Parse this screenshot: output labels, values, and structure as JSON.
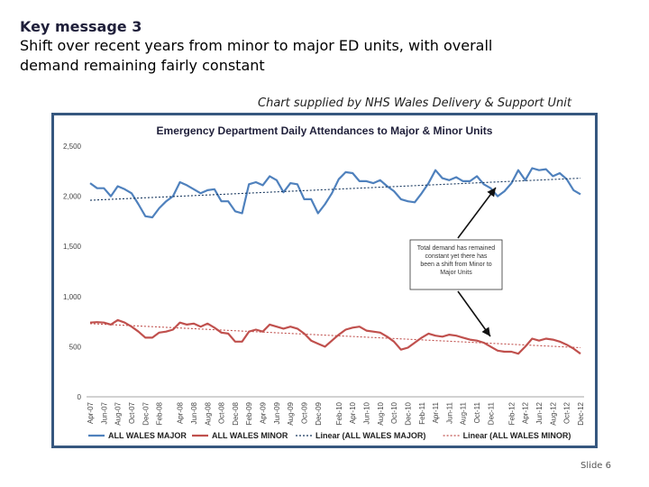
{
  "slide": {
    "kicker": "Key message 3",
    "line1": "Shift over recent years from minor to major ED units, with overall",
    "line2": "demand remaining fairly constant",
    "supplied_by": "Chart supplied by NHS Wales Delivery & Support Unit",
    "slide_number": "Slide 6"
  },
  "chart_data": {
    "type": "line",
    "title": "Emergency Department Daily Attendances to Major & Minor Units",
    "xlabel": "",
    "ylabel": "",
    "ylim": [
      0,
      2500
    ],
    "yticks": [
      "0",
      "500",
      "1,000",
      "1,500",
      "2,000",
      "2,500"
    ],
    "ytick_values": [
      0,
      500,
      1000,
      1500,
      2000,
      2500
    ],
    "grid": false,
    "legend_position": "bottom",
    "x_tick_labels": [
      "Apr-07",
      "Jun-07",
      "Aug-07",
      "Oct-07",
      "Dec-07",
      "Feb-08",
      "Apr-08",
      "Jun-08",
      "Aug-08",
      "Oct-08",
      "Dec-08",
      "Feb-09",
      "Apr-09",
      "Jun-09",
      "Aug-09",
      "Oct-09",
      "Dec-09",
      "Feb-10",
      "Apr-10",
      "Jun-10",
      "Aug-10",
      "Oct-10",
      "Dec-10",
      "Feb-11",
      "Apr-11",
      "Jun-11",
      "Aug-11",
      "Oct-11",
      "Dec-11",
      "Feb-12",
      "Apr-12",
      "Jun-12",
      "Aug-12",
      "Oct-12",
      "Dec-12"
    ],
    "series": [
      {
        "name": "ALL WALES MAJOR",
        "color": "#4f81bd",
        "style": "solid",
        "values": [
          2130,
          2080,
          2080,
          2000,
          2100,
          2070,
          2030,
          1920,
          1800,
          1790,
          1880,
          1950,
          2000,
          2140,
          2110,
          2070,
          2030,
          2060,
          2070,
          1950,
          1950,
          1850,
          1830,
          2120,
          2140,
          2110,
          2200,
          2160,
          2040,
          2130,
          2120,
          1970,
          1970,
          1830,
          1920,
          2030,
          2170,
          2240,
          2230,
          2150,
          2150,
          2130,
          2160,
          2100,
          2050,
          1970,
          1950,
          1940,
          2030,
          2130,
          2260,
          2180,
          2160,
          2190,
          2150,
          2150,
          2200,
          2120,
          2080,
          2000,
          2050,
          2130,
          2260,
          2160,
          2280,
          2260,
          2270,
          2200,
          2230,
          2170,
          2060,
          2020
        ]
      },
      {
        "name": "ALL WALES MINOR",
        "color": "#c0504d",
        "style": "solid",
        "values": [
          740,
          745,
          740,
          720,
          765,
          740,
          700,
          650,
          590,
          590,
          640,
          650,
          670,
          740,
          720,
          730,
          700,
          730,
          690,
          640,
          630,
          550,
          550,
          650,
          670,
          650,
          720,
          700,
          680,
          700,
          680,
          630,
          560,
          530,
          500,
          560,
          620,
          670,
          690,
          700,
          660,
          650,
          640,
          600,
          550,
          470,
          490,
          540,
          590,
          630,
          610,
          600,
          620,
          610,
          590,
          570,
          560,
          540,
          500,
          460,
          450,
          450,
          430,
          500,
          580,
          560,
          580,
          570,
          550,
          520,
          480,
          430
        ]
      },
      {
        "name": "Linear (ALL WALES MAJOR)",
        "color": "#17375e",
        "style": "dotted",
        "values": [
          1960,
          2180
        ]
      },
      {
        "name": "Linear (ALL WALES MINOR)",
        "color": "#c0504d",
        "style": "dotted",
        "values": [
          730,
          490
        ]
      }
    ],
    "annotation": "Total demand has remained constant yet there has been a shift from Minor to Major Units"
  }
}
